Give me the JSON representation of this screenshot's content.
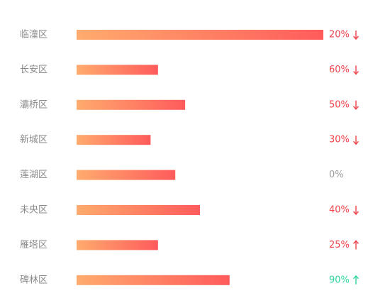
{
  "chart_data": {
    "type": "bar",
    "orientation": "horizontal",
    "categories": [
      "临潼区",
      "长安区",
      "灞桥区",
      "新城区",
      "莲湖区",
      "未央区",
      "雁塔区",
      "碑林区"
    ],
    "values": [
      100,
      33,
      44,
      30,
      40,
      50,
      33,
      62
    ],
    "xlim": [
      0,
      100
    ],
    "gradient": [
      "#ffab6e",
      "#ff5b5b"
    ],
    "changes": {
      "values": [
        20,
        60,
        50,
        30,
        0,
        40,
        25,
        90
      ],
      "value_labels": [
        "20%",
        "60%",
        "50%",
        "30%",
        "0%",
        "40%",
        "25%",
        "90%"
      ],
      "directions": [
        "down",
        "down",
        "down",
        "down",
        "flat",
        "down",
        "up",
        "up"
      ],
      "colors": [
        "#f0424a",
        "#f0424a",
        "#f0424a",
        "#f0424a",
        "#9a9a9a",
        "#f0424a",
        "#f0424a",
        "#2ed69a"
      ]
    }
  }
}
